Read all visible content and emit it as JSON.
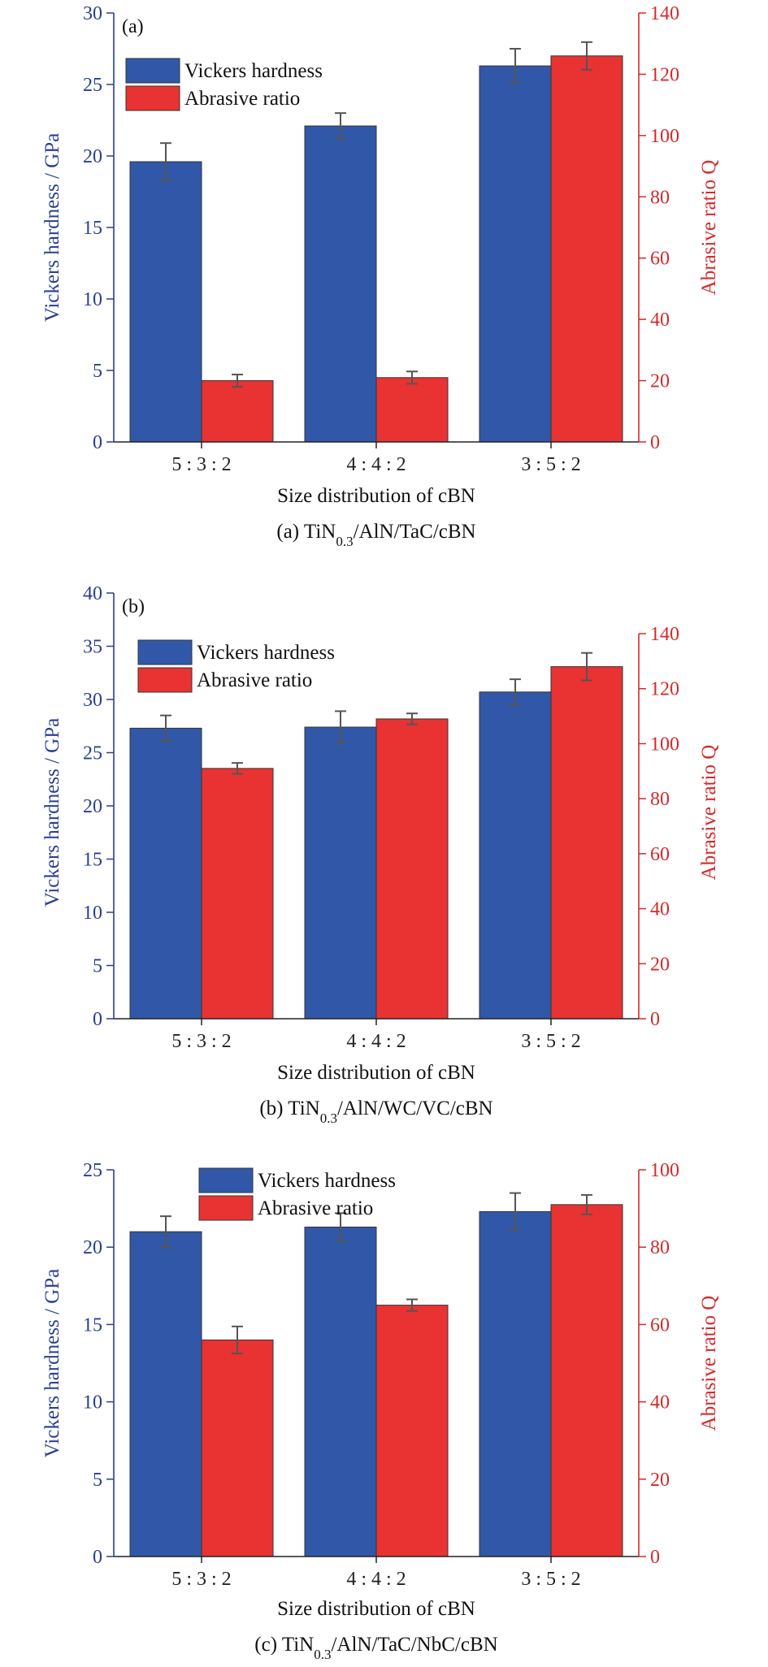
{
  "colors": {
    "hardness": "#3158a8",
    "abrasive": "#e83332",
    "left_axis": "#2a3f8f",
    "right_axis": "#d42a2a",
    "error_bar": "#555555"
  },
  "chart_data": [
    {
      "type": "bar",
      "panel_label": "(a)",
      "caption_prefix": "(a) TiN",
      "caption_sub": "0.3",
      "caption_suffix": "/AlN/TaC/cBN",
      "categories": [
        "5 : 3 : 2",
        "4 : 4 : 2",
        "3 : 5 : 2"
      ],
      "xlabel": "Size distribution of cBN",
      "ylabel_left": "Vickers hardness / GPa",
      "ylabel_right": "Abrasive ratio Q",
      "ylim_left": [
        0,
        30
      ],
      "ylim_right": [
        0,
        140
      ],
      "yticks_left": [
        0,
        5,
        10,
        15,
        20,
        25,
        30
      ],
      "yticks_right": [
        0,
        20,
        40,
        60,
        80,
        100,
        120,
        140
      ],
      "legend_position": "top-left",
      "series": [
        {
          "name": "Vickers hardness",
          "axis": "left",
          "values": [
            19.6,
            22.1,
            26.3
          ],
          "errors": [
            1.3,
            0.9,
            1.2
          ]
        },
        {
          "name": "Abrasive ratio",
          "axis": "right",
          "values": [
            20,
            21,
            126
          ],
          "errors": [
            2,
            2,
            4.5
          ]
        }
      ]
    },
    {
      "type": "bar",
      "panel_label": "(b)",
      "caption_prefix": "(b) TiN",
      "caption_sub": "0.3",
      "caption_suffix": "/AlN/WC/VC/cBN",
      "categories": [
        "5 : 3 : 2",
        "4 : 4 : 2",
        "3 : 5 : 2"
      ],
      "xlabel": "Size distribution of cBN",
      "ylabel_left": "Vickers hardness / GPa",
      "ylabel_right": "Abrasive ratio Q",
      "ylim_left": [
        0,
        40
      ],
      "ylim_right": [
        0,
        140
      ],
      "yticks_left": [
        0,
        5,
        10,
        15,
        20,
        25,
        30,
        35,
        40
      ],
      "yticks_right": [
        0,
        20,
        40,
        60,
        80,
        100,
        120,
        140
      ],
      "legend_position": "top-left",
      "series": [
        {
          "name": "Vickers hardness",
          "axis": "left",
          "values": [
            27.3,
            27.4,
            30.7
          ],
          "errors": [
            1.2,
            1.5,
            1.2
          ]
        },
        {
          "name": "Abrasive ratio",
          "axis": "right",
          "values": [
            91,
            109,
            128
          ],
          "errors": [
            2,
            2,
            5
          ]
        }
      ]
    },
    {
      "type": "bar",
      "panel_label": "",
      "caption_prefix": "(c) TiN",
      "caption_sub": "0.3",
      "caption_suffix": "/AlN/TaC/NbC/cBN",
      "categories": [
        "5 : 3 : 2",
        "4 : 4 : 2",
        "3 : 5 : 2"
      ],
      "xlabel": "Size distribution of cBN",
      "ylabel_left": "Vickers hardness / GPa",
      "ylabel_right": "Abrasive ratio Q",
      "ylim_left": [
        0,
        25
      ],
      "ylim_right": [
        0,
        100
      ],
      "yticks_left": [
        0,
        5,
        10,
        15,
        20,
        25
      ],
      "yticks_right": [
        0,
        20,
        40,
        60,
        80,
        100
      ],
      "legend_position": "top-center",
      "series": [
        {
          "name": "Vickers hardness",
          "axis": "left",
          "values": [
            21.0,
            21.3,
            22.3
          ],
          "errors": [
            1.0,
            0.9,
            1.2
          ]
        },
        {
          "name": "Abrasive ratio",
          "axis": "right",
          "values": [
            56,
            65,
            91
          ],
          "errors": [
            3.5,
            1.5,
            2.5
          ]
        }
      ]
    }
  ]
}
